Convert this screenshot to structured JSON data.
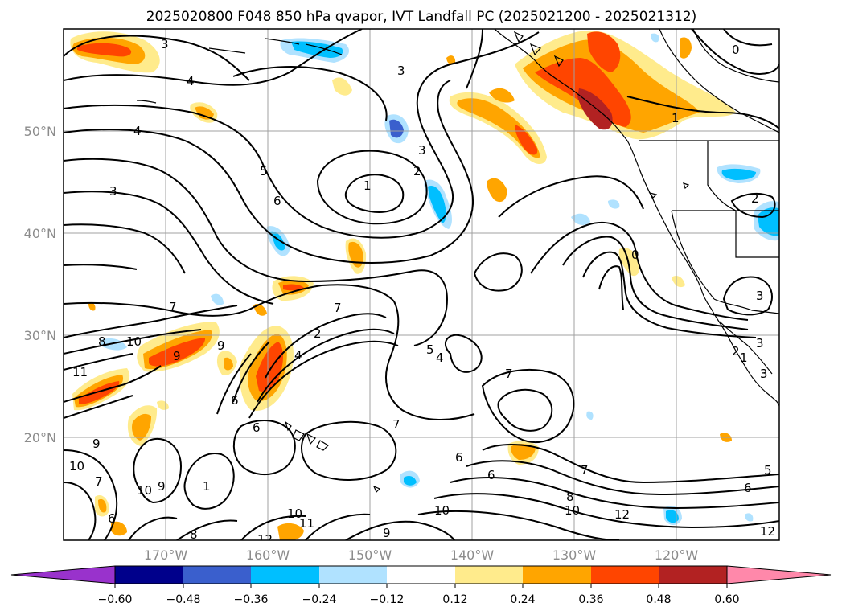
{
  "title": "2025020800 F048 850 hPa qvapor, IVT Landfall PC (2025021200 - 2025021312)",
  "axes": {
    "lat_ticks": [
      "50°N",
      "40°N",
      "30°N",
      "20°N"
    ],
    "lon_ticks": [
      "170°W",
      "160°W",
      "150°W",
      "140°W",
      "130°W",
      "120°W"
    ]
  },
  "colorbar": {
    "tick_labels": [
      "−0.60",
      "−0.48",
      "−0.36",
      "−0.24",
      "−0.12",
      "0.12",
      "0.24",
      "0.36",
      "0.48",
      "0.60"
    ],
    "colors": [
      "#9932cc",
      "#00008b",
      "#3a5fcd",
      "#00bfff",
      "#b0e2ff",
      "#ffffff",
      "#ffeb8c",
      "#ffa500",
      "#ff4500",
      "#b22222",
      "#ff88aa"
    ]
  },
  "contour_labels": [
    "3",
    "4",
    "4",
    "3",
    "5",
    "6",
    "3",
    "1",
    "3",
    "2",
    "0",
    "1",
    "2",
    "3",
    "7",
    "7",
    "9",
    "10",
    "11",
    "8",
    "9",
    "6",
    "6",
    "4",
    "2",
    "7",
    "5",
    "4",
    "7",
    "6",
    "6",
    "8",
    "10",
    "12",
    "1",
    "9",
    "10",
    "9",
    "10",
    "7",
    "6",
    "10",
    "11",
    "12",
    "8",
    "9",
    "10",
    "7",
    "1",
    "3",
    "0",
    "2",
    "3",
    "5",
    "6",
    "12"
  ]
}
